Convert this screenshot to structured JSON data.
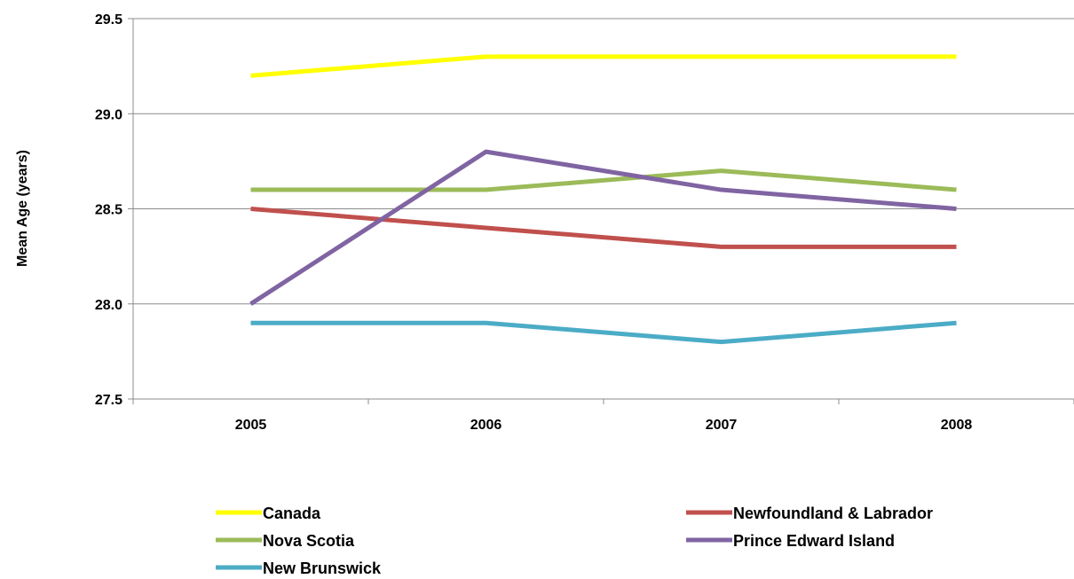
{
  "chart_data": {
    "type": "line",
    "title": "",
    "xlabel": "",
    "ylabel": "Mean Age (years)",
    "categories": [
      "2005",
      "2006",
      "2007",
      "2008"
    ],
    "ylim": [
      27.5,
      29.5
    ],
    "yticks": [
      "27.5",
      "28.0",
      "28.5",
      "29.0",
      "29.5"
    ],
    "grid": true,
    "legend_position": "bottom",
    "series": [
      {
        "name": "Canada",
        "color": "#FFFF00",
        "values": [
          29.2,
          29.3,
          29.3,
          29.3
        ]
      },
      {
        "name": "Newfoundland  & Labrador",
        "color": "#C0504D",
        "values": [
          28.5,
          28.4,
          28.3,
          28.3
        ]
      },
      {
        "name": "Nova Scotia",
        "color": "#9BBB59",
        "values": [
          28.6,
          28.6,
          28.7,
          28.6
        ]
      },
      {
        "name": "Prince Edward  Island",
        "color": "#8064A2",
        "values": [
          28.0,
          28.8,
          28.6,
          28.5
        ]
      },
      {
        "name": "New Brunswick",
        "color": "#4BACC6",
        "values": [
          27.9,
          27.9,
          27.8,
          27.9
        ]
      }
    ]
  }
}
